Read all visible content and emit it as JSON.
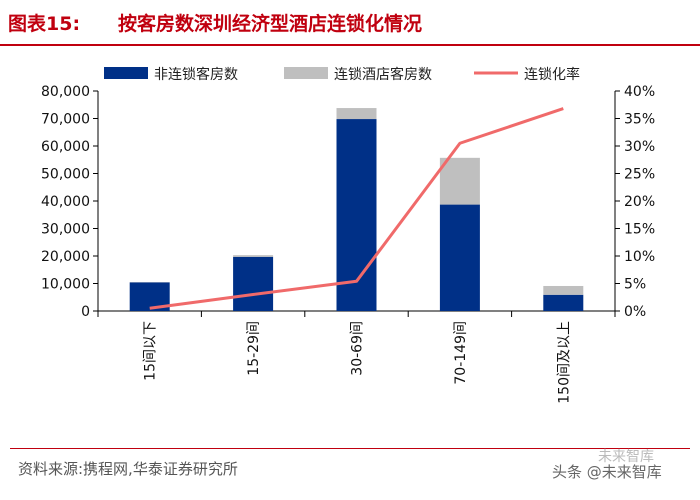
{
  "header": {
    "figure_label": "图表15:",
    "title": "按客房数深圳经济型酒店连锁化情况"
  },
  "footer": {
    "source": "资料来源:携程网,华泰证券研究所",
    "watermark": "头条 @未来智库",
    "watermark_faint": "未来智库"
  },
  "chart_data": {
    "type": "bar",
    "stacked": true,
    "categories": [
      "15间以下",
      "15-29间",
      "30-69间",
      "70-149间",
      "150间及以上"
    ],
    "series": [
      {
        "name": "非连锁客房数",
        "kind": "bar",
        "axis": "left",
        "color": "#003087",
        "values": [
          10400,
          19700,
          69800,
          38700,
          5900
        ]
      },
      {
        "name": "连锁酒店客房数",
        "kind": "bar",
        "axis": "left",
        "color": "#bfbfbf",
        "values": [
          100,
          600,
          4000,
          17000,
          3200
        ]
      },
      {
        "name": "连锁化率",
        "kind": "line",
        "axis": "right",
        "color": "#f06a6a",
        "values": [
          0.5,
          3.0,
          5.4,
          30.5,
          36.8
        ]
      }
    ],
    "y_left": {
      "min": 0,
      "max": 80000,
      "step": 10000,
      "tick_labels": [
        "0",
        "10,000",
        "20,000",
        "30,000",
        "40,000",
        "50,000",
        "60,000",
        "70,000",
        "80,000"
      ]
    },
    "y_right": {
      "min": 0,
      "max": 40,
      "step": 5,
      "tick_labels": [
        "0%",
        "5%",
        "10%",
        "15%",
        "20%",
        "25%",
        "30%",
        "35%",
        "40%"
      ]
    },
    "legend": [
      "非连锁客房数",
      "连锁酒店客房数",
      "连锁化率"
    ],
    "legend_position": "top",
    "grid": false
  }
}
